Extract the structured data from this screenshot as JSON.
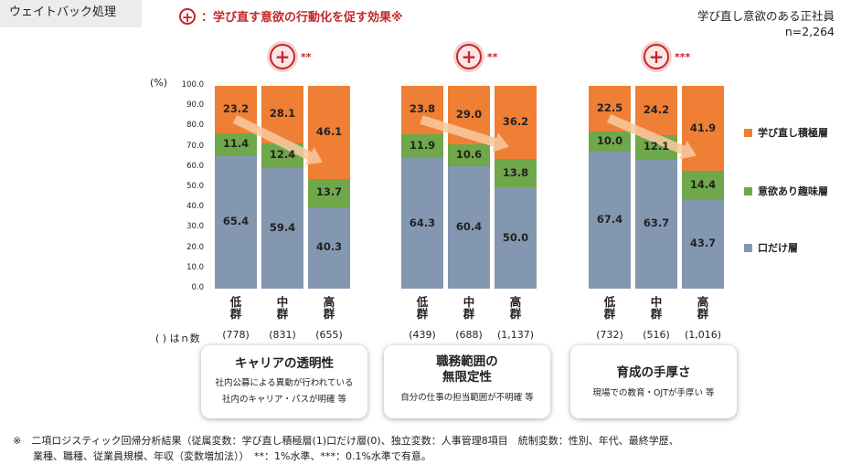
{
  "tag": "ウェイトバック処理",
  "headline": {
    "icon": "+",
    "text": "：学び直す意欲の行動化を促す効果※"
  },
  "sample": {
    "line1": "学び直し意欲のある正社員",
    "line2": "n=2,264"
  },
  "colors": {
    "active": "#ef7f34",
    "interest": "#6ea84a",
    "talk": "#8497b0",
    "arrow": "#f8c79c",
    "accent": "#c0282b"
  },
  "chart_data": {
    "type": "stacked-bar",
    "unit_label": "(%)",
    "ylim": [
      0,
      100
    ],
    "yticks": [
      "100.0",
      "90.0",
      "80.0",
      "70.0",
      "60.0",
      "50.0",
      "40.0",
      "30.0",
      "20.0",
      "10.0",
      "0.0"
    ],
    "series_order": [
      "口だけ層",
      "意欲あり趣味層",
      "学び直し積極層"
    ],
    "legend": [
      "学び直し積極層",
      "意欲あり趣味層",
      "口だけ層"
    ],
    "n_caption": "( ) はｎ数",
    "groups": [
      {
        "significance": "**",
        "categories": [
          "低群",
          "中群",
          "高群"
        ],
        "n": [
          "(778)",
          "(831)",
          "(655)"
        ],
        "values": {
          "口だけ層": [
            65.4,
            59.4,
            40.3
          ],
          "意欲あり趣味層": [
            11.4,
            12.4,
            13.7
          ],
          "学び直し積極層": [
            23.2,
            28.1,
            46.1
          ]
        }
      },
      {
        "significance": "**",
        "categories": [
          "低群",
          "中群",
          "高群"
        ],
        "n": [
          "(439)",
          "(688)",
          "(1,137)"
        ],
        "values": {
          "口だけ層": [
            64.3,
            60.4,
            50.0
          ],
          "意欲あり趣味層": [
            11.9,
            10.6,
            13.8
          ],
          "学び直し積極層": [
            23.8,
            29.0,
            36.2
          ]
        }
      },
      {
        "significance": "***",
        "categories": [
          "低群",
          "中群",
          "高群"
        ],
        "n": [
          "(732)",
          "(516)",
          "(1,016)"
        ],
        "values": {
          "口だけ層": [
            67.4,
            63.7,
            43.7
          ],
          "意欲あり趣味層": [
            10.0,
            12.1,
            14.4
          ],
          "学び直し積極層": [
            22.5,
            24.2,
            41.9
          ]
        }
      }
    ]
  },
  "cards": [
    {
      "title": "キャリアの透明性",
      "sub1": "社内公募による異動が行われている",
      "sub2": "社内のキャリア・パスが明確 等"
    },
    {
      "title": "職務範囲の",
      "title2": "無限定性",
      "sub1": "自分の仕事の担当範囲が不明確 等",
      "sub2": ""
    },
    {
      "title": "育成の手厚さ",
      "sub1": "現場での教育・OJTが手厚い 等",
      "sub2": ""
    }
  ],
  "footnote": {
    "line1": "※　二項ロジスティック回帰分析結果（従属変数：学び直し積極層(1)口だけ層(0)、独立変数：人事管理8項目　統制変数：性別、年代、最終学歴、",
    "line2": "　　業種、職種、従業員規模、年収（変数増加法））　**：1%水準、***：0.1%水準で有意。"
  }
}
